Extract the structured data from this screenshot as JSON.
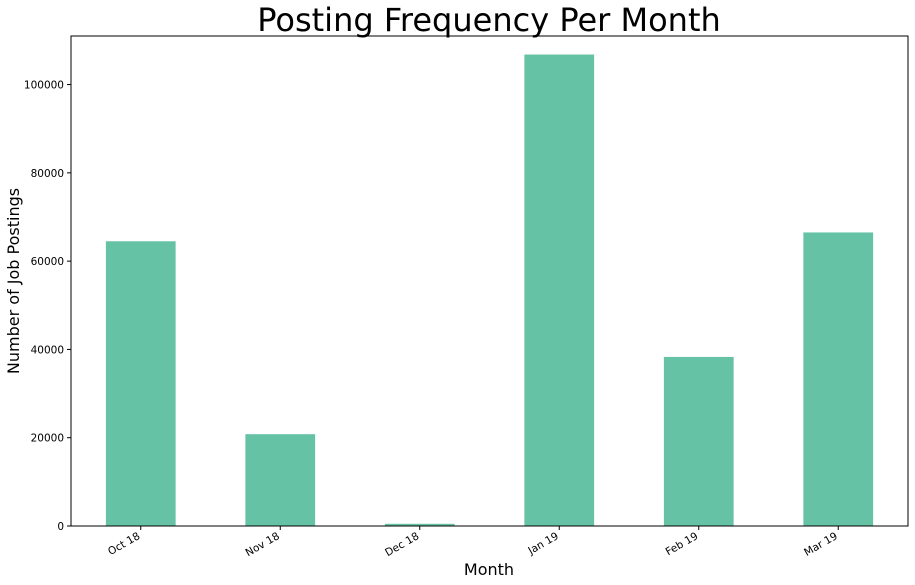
{
  "chart_data": {
    "type": "bar",
    "title": "Posting Frequency Per Month",
    "xlabel": "Month",
    "ylabel": "Number of Job Postings",
    "categories": [
      "Oct 18",
      "Nov 18",
      "Dec 18",
      "Jan 19",
      "Feb 19",
      "Mar 19"
    ],
    "values": [
      64500,
      20800,
      500,
      106800,
      38300,
      66500
    ],
    "ylim": [
      0,
      111000
    ],
    "yticks": [
      0,
      20000,
      40000,
      60000,
      80000,
      100000
    ],
    "ytick_labels": [
      "0",
      "20000",
      "40000",
      "60000",
      "80000",
      "100000"
    ],
    "bar_color": "#66c2a5",
    "grid": false,
    "legend": null
  }
}
